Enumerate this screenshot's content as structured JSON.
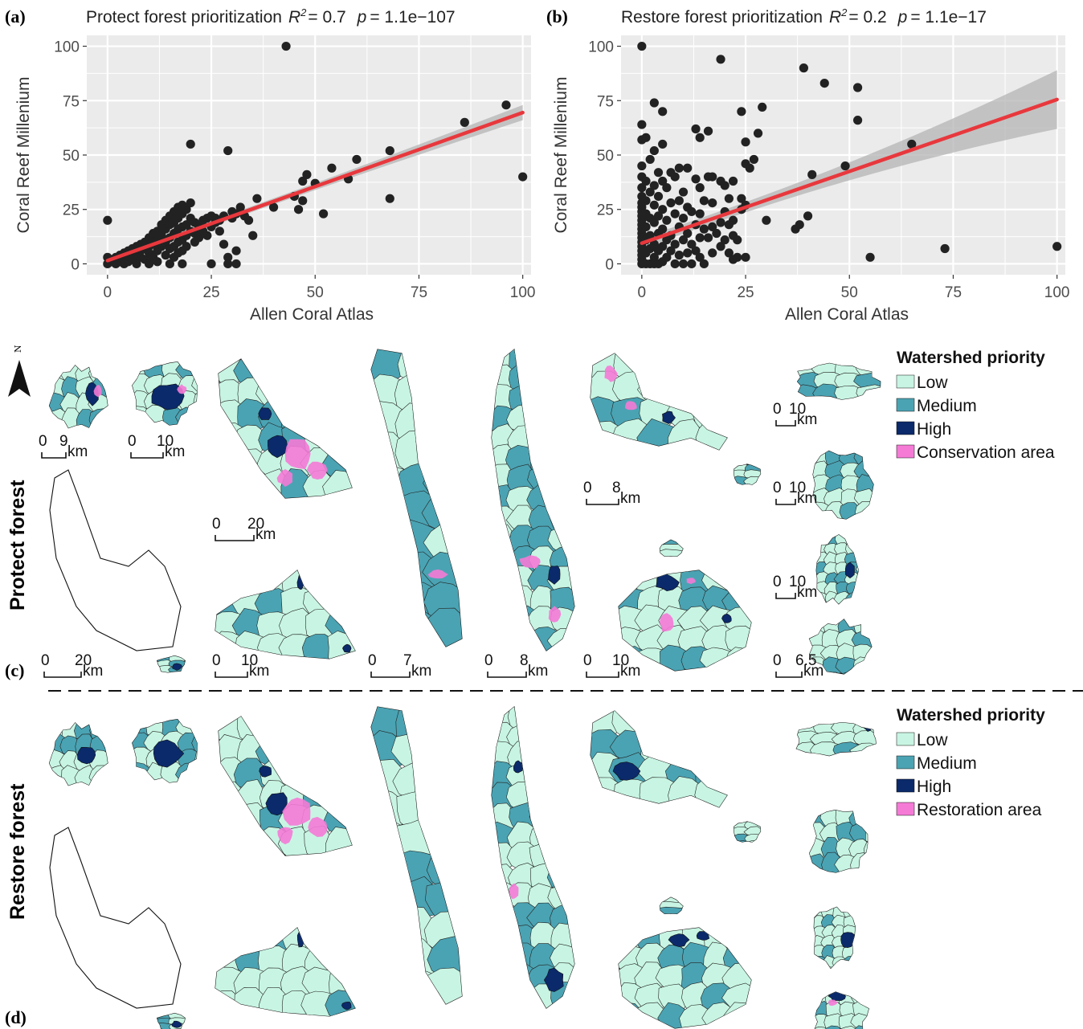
{
  "panels": {
    "a": {
      "panel_label": "(a)",
      "title_prefix": "Protect forest prioritization",
      "r2_label": "R",
      "r2_sup": "2",
      "r2_value": "=  0.7",
      "p_label": "p",
      "p_value": "= 1.1e−107"
    },
    "b": {
      "panel_label": "(b)",
      "title_prefix": "Restore forest prioritization",
      "r2_label": "R",
      "r2_sup": "2",
      "r2_value": "=  0.2",
      "p_label": "p",
      "p_value": "= 1.1e−17"
    },
    "c": {
      "panel_label": "(c)",
      "row_label": "Protect forest",
      "north_label": "N"
    },
    "d": {
      "panel_label": "(d)",
      "row_label": "Restore forest"
    }
  },
  "chart_data": [
    {
      "type": "scatter",
      "panel": "a",
      "xlabel": "Allen Coral Atlas",
      "ylabel": "Coral Reef Millenium",
      "xlim": [
        -5,
        102
      ],
      "ylim": [
        -5,
        105
      ],
      "xticks": [
        "0",
        "25",
        "50",
        "75",
        "100"
      ],
      "yticks": [
        "0",
        "25",
        "50",
        "75",
        "100"
      ],
      "grid": true,
      "fit": {
        "x0": 0,
        "y0": 1.5,
        "x1": 100,
        "y1": 69.5,
        "band_start": 1.2,
        "band_end": 3.5,
        "color": "#e8383d"
      },
      "points": [
        [
          0,
          20
        ],
        [
          0,
          0
        ],
        [
          0,
          3
        ],
        [
          1,
          1
        ],
        [
          1,
          2
        ],
        [
          2,
          0
        ],
        [
          2,
          3
        ],
        [
          3,
          1
        ],
        [
          3,
          4
        ],
        [
          4,
          0
        ],
        [
          4,
          5
        ],
        [
          4,
          2
        ],
        [
          5,
          6
        ],
        [
          5,
          1
        ],
        [
          5,
          3
        ],
        [
          6,
          7
        ],
        [
          6,
          2
        ],
        [
          6,
          5
        ],
        [
          7,
          4
        ],
        [
          7,
          8
        ],
        [
          7,
          0
        ],
        [
          8,
          6
        ],
        [
          8,
          9
        ],
        [
          8,
          3
        ],
        [
          9,
          10
        ],
        [
          9,
          7
        ],
        [
          9,
          2
        ],
        [
          10,
          12
        ],
        [
          10,
          5
        ],
        [
          10,
          8
        ],
        [
          10,
          0
        ],
        [
          11,
          14
        ],
        [
          11,
          9
        ],
        [
          11,
          3
        ],
        [
          12,
          15
        ],
        [
          12,
          11
        ],
        [
          12,
          6
        ],
        [
          12,
          1
        ],
        [
          13,
          18
        ],
        [
          13,
          13
        ],
        [
          13,
          8
        ],
        [
          14,
          20
        ],
        [
          14,
          16
        ],
        [
          14,
          10
        ],
        [
          14,
          4
        ],
        [
          15,
          22
        ],
        [
          15,
          18
        ],
        [
          15,
          12
        ],
        [
          15,
          7
        ],
        [
          15,
          0
        ],
        [
          16,
          24
        ],
        [
          16,
          19
        ],
        [
          16,
          14
        ],
        [
          16,
          8
        ],
        [
          16,
          3
        ],
        [
          17,
          26
        ],
        [
          17,
          21
        ],
        [
          17,
          16
        ],
        [
          17,
          10
        ],
        [
          17,
          5
        ],
        [
          18,
          27
        ],
        [
          18,
          23
        ],
        [
          18,
          17
        ],
        [
          18,
          11
        ],
        [
          18,
          6
        ],
        [
          18,
          0
        ],
        [
          19,
          25
        ],
        [
          19,
          18
        ],
        [
          19,
          13
        ],
        [
          19,
          8
        ],
        [
          20,
          55
        ],
        [
          20,
          28
        ],
        [
          20,
          21
        ],
        [
          20,
          15
        ],
        [
          21,
          19
        ],
        [
          21,
          14
        ],
        [
          21,
          10
        ],
        [
          22,
          17
        ],
        [
          22,
          12
        ],
        [
          23,
          20
        ],
        [
          23,
          15
        ],
        [
          24,
          21
        ],
        [
          24,
          13
        ],
        [
          25,
          22
        ],
        [
          25,
          17
        ],
        [
          25,
          0
        ],
        [
          26,
          21
        ],
        [
          26,
          19
        ],
        [
          27,
          20
        ],
        [
          27,
          15
        ],
        [
          28,
          22
        ],
        [
          28,
          9
        ],
        [
          29,
          52
        ],
        [
          29,
          3
        ],
        [
          29,
          0
        ],
        [
          30,
          24
        ],
        [
          30,
          21
        ],
        [
          31,
          23
        ],
        [
          31,
          6
        ],
        [
          31,
          0
        ],
        [
          32,
          26
        ],
        [
          33,
          22
        ],
        [
          34,
          20
        ],
        [
          35,
          13
        ],
        [
          36,
          30
        ],
        [
          40,
          26
        ],
        [
          43,
          100
        ],
        [
          45,
          31
        ],
        [
          46,
          25
        ],
        [
          47,
          29
        ],
        [
          47,
          38
        ],
        [
          48,
          41
        ],
        [
          50,
          37
        ],
        [
          52,
          23
        ],
        [
          54,
          44
        ],
        [
          58,
          39
        ],
        [
          60,
          48
        ],
        [
          68,
          52
        ],
        [
          68,
          30
        ],
        [
          86,
          65
        ],
        [
          96,
          73
        ],
        [
          100,
          40
        ]
      ]
    },
    {
      "type": "scatter",
      "panel": "b",
      "xlabel": "Allen Coral Atlas",
      "ylabel": "Coral Reef Millenium",
      "xlim": [
        -5,
        102
      ],
      "ylim": [
        -5,
        105
      ],
      "xticks": [
        "0",
        "25",
        "50",
        "75",
        "100"
      ],
      "yticks": [
        "0",
        "25",
        "50",
        "75",
        "100"
      ],
      "grid": true,
      "fit": {
        "x0": 0,
        "y0": 9.5,
        "x1": 100,
        "y1": 75.5,
        "band_start": 2.2,
        "band_end": 13.5,
        "color": "#e8383d"
      },
      "points": [
        [
          0,
          100
        ],
        [
          0,
          64
        ],
        [
          0,
          57
        ],
        [
          0,
          45
        ],
        [
          0,
          40
        ],
        [
          0,
          35
        ],
        [
          0,
          31
        ],
        [
          0,
          28
        ],
        [
          0,
          26
        ],
        [
          0,
          24
        ],
        [
          0,
          22
        ],
        [
          0,
          20
        ],
        [
          0,
          18
        ],
        [
          0,
          16
        ],
        [
          0,
          14
        ],
        [
          0,
          12
        ],
        [
          0,
          10
        ],
        [
          0,
          8
        ],
        [
          0,
          6
        ],
        [
          0,
          4
        ],
        [
          0,
          2
        ],
        [
          0,
          0
        ],
        [
          1,
          58
        ],
        [
          1,
          38
        ],
        [
          1,
          29
        ],
        [
          1,
          23
        ],
        [
          1,
          17
        ],
        [
          1,
          11
        ],
        [
          1,
          5
        ],
        [
          1,
          0
        ],
        [
          2,
          48
        ],
        [
          2,
          33
        ],
        [
          2,
          21
        ],
        [
          2,
          13
        ],
        [
          2,
          7
        ],
        [
          2,
          0
        ],
        [
          3,
          74
        ],
        [
          3,
          52
        ],
        [
          3,
          36
        ],
        [
          3,
          27
        ],
        [
          3,
          19
        ],
        [
          3,
          9
        ],
        [
          3,
          3
        ],
        [
          3,
          0
        ],
        [
          4,
          42
        ],
        [
          4,
          31
        ],
        [
          4,
          22
        ],
        [
          4,
          14
        ],
        [
          4,
          6
        ],
        [
          4,
          0
        ],
        [
          5,
          70
        ],
        [
          5,
          55
        ],
        [
          5,
          38
        ],
        [
          5,
          25
        ],
        [
          5,
          16
        ],
        [
          5,
          8
        ],
        [
          5,
          1
        ],
        [
          6,
          35
        ],
        [
          6,
          20
        ],
        [
          6,
          11
        ],
        [
          6,
          3
        ],
        [
          7,
          42
        ],
        [
          7,
          28
        ],
        [
          7,
          13
        ],
        [
          7,
          6
        ],
        [
          8,
          40
        ],
        [
          8,
          23
        ],
        [
          8,
          9
        ],
        [
          8,
          0
        ],
        [
          9,
          44
        ],
        [
          9,
          29
        ],
        [
          9,
          17
        ],
        [
          9,
          4
        ],
        [
          10,
          33
        ],
        [
          10,
          21
        ],
        [
          10,
          11
        ],
        [
          10,
          0
        ],
        [
          11,
          44
        ],
        [
          11,
          26
        ],
        [
          11,
          14
        ],
        [
          11,
          5
        ],
        [
          12,
          24
        ],
        [
          12,
          9
        ],
        [
          12,
          0
        ],
        [
          13,
          62
        ],
        [
          13,
          39
        ],
        [
          13,
          18
        ],
        [
          13,
          6
        ],
        [
          14,
          58
        ],
        [
          14,
          35
        ],
        [
          14,
          23
        ],
        [
          14,
          12
        ],
        [
          14,
          3
        ],
        [
          15,
          29
        ],
        [
          15,
          16
        ],
        [
          15,
          0
        ],
        [
          16,
          61
        ],
        [
          16,
          40
        ],
        [
          16,
          12
        ],
        [
          17,
          40
        ],
        [
          17,
          28
        ],
        [
          17,
          17
        ],
        [
          17,
          5
        ],
        [
          18,
          14
        ],
        [
          19,
          94
        ],
        [
          19,
          38
        ],
        [
          19,
          19
        ],
        [
          19,
          8
        ],
        [
          20,
          36
        ],
        [
          20,
          24
        ],
        [
          20,
          11
        ],
        [
          21,
          30
        ],
        [
          21,
          18
        ],
        [
          21,
          5
        ],
        [
          22,
          38
        ],
        [
          22,
          20
        ],
        [
          22,
          13
        ],
        [
          22,
          2
        ],
        [
          23,
          11
        ],
        [
          23,
          3
        ],
        [
          24,
          70
        ],
        [
          24,
          30
        ],
        [
          24,
          25
        ],
        [
          25,
          56
        ],
        [
          25,
          46
        ],
        [
          25,
          27
        ],
        [
          25,
          3
        ],
        [
          26,
          44
        ],
        [
          27,
          48
        ],
        [
          28,
          60
        ],
        [
          29,
          72
        ],
        [
          30,
          20
        ],
        [
          37,
          16
        ],
        [
          38,
          18
        ],
        [
          39,
          90
        ],
        [
          40,
          22
        ],
        [
          41,
          41
        ],
        [
          44,
          83
        ],
        [
          49,
          45
        ],
        [
          52,
          81
        ],
        [
          52,
          66
        ],
        [
          55,
          3
        ],
        [
          65,
          55
        ],
        [
          73,
          7
        ],
        [
          100,
          8
        ]
      ]
    }
  ],
  "legend_protect": {
    "title": "Watershed priority",
    "items": [
      {
        "label": "Low",
        "color": "#c8f5e3"
      },
      {
        "label": "Medium",
        "color": "#4aa3b3"
      },
      {
        "label": "High",
        "color": "#0b2a6b"
      },
      {
        "label": "Conservation area",
        "color": "#f57ad6"
      }
    ]
  },
  "legend_restore": {
    "title": "Watershed priority",
    "items": [
      {
        "label": "Low",
        "color": "#c8f5e3"
      },
      {
        "label": "Medium",
        "color": "#4aa3b3"
      },
      {
        "label": "High",
        "color": "#0b2a6b"
      },
      {
        "label": "Restoration area",
        "color": "#f57ad6"
      }
    ]
  },
  "scalebars": [
    {
      "zero": "0",
      "dist": "9",
      "unit": "km"
    },
    {
      "zero": "0",
      "dist": "10",
      "unit": "km"
    },
    {
      "zero": "0",
      "dist": "20",
      "unit": "km"
    },
    {
      "zero": "0",
      "dist": "10",
      "unit": "km"
    },
    {
      "zero": "0",
      "dist": "8",
      "unit": "km"
    },
    {
      "zero": "0",
      "dist": "10",
      "unit": "km"
    },
    {
      "zero": "0",
      "dist": "10",
      "unit": "km"
    },
    {
      "zero": "0",
      "dist": "20",
      "unit": "km"
    },
    {
      "zero": "0",
      "dist": "10",
      "unit": "km"
    },
    {
      "zero": "0",
      "dist": "7",
      "unit": "km"
    },
    {
      "zero": "0",
      "dist": "8",
      "unit": "km"
    },
    {
      "zero": "0",
      "dist": "10",
      "unit": "km"
    },
    {
      "zero": "0",
      "dist": "6.5",
      "unit": "km"
    }
  ],
  "colors": {
    "panel_bg": "#ebebeb",
    "grid": "#ffffff",
    "point": "#222222",
    "fit_line": "#e8383d",
    "band": "#b4b4b4",
    "low": "#c8f5e3",
    "medium": "#4aa3b3",
    "high": "#0b2a6b",
    "area": "#f57ad6"
  }
}
